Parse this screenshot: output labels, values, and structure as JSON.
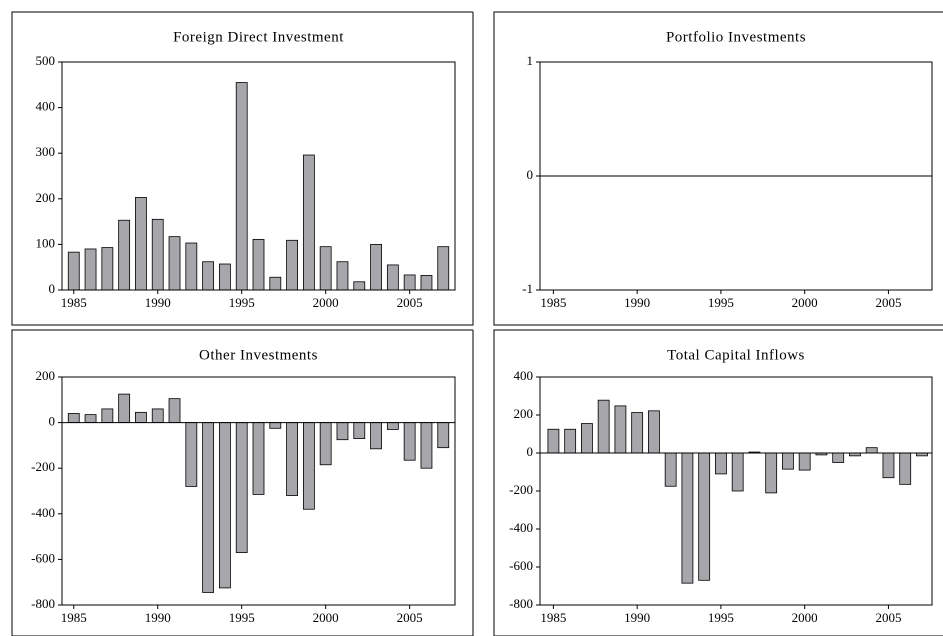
{
  "chart_data": [
    {
      "type": "bar",
      "title": "Foreign Direct Investment",
      "color": "#a6a6ab",
      "x": [
        1985,
        1986,
        1987,
        1988,
        1989,
        1990,
        1991,
        1992,
        1993,
        1994,
        1995,
        1996,
        1997,
        1998,
        1999,
        2000,
        2001,
        2002,
        2003,
        2004,
        2005,
        2006,
        2007
      ],
      "values": [
        83,
        90,
        93,
        153,
        203,
        155,
        117,
        103,
        62,
        57,
        455,
        111,
        28,
        109,
        296,
        95,
        62,
        18,
        100,
        55,
        33,
        32,
        95
      ],
      "xlim": [
        1984.3,
        2007.7
      ],
      "xticks": [
        1985,
        1990,
        1995,
        2000,
        2005
      ],
      "ylim": [
        0,
        500
      ],
      "yticks": [
        0,
        100,
        200,
        300,
        400,
        500
      ]
    },
    {
      "type": "bar",
      "title": "Portfolio Investments",
      "color": "#a6a6ab",
      "x": [
        1985,
        1986,
        1987,
        1988,
        1989,
        1990,
        1991,
        1992,
        1993,
        1994,
        1995,
        1996,
        1997,
        1998,
        1999,
        2000,
        2001,
        2002,
        2003,
        2004,
        2005,
        2006,
        2007
      ],
      "values": [
        0,
        0,
        0,
        0,
        0,
        0,
        0,
        0,
        0,
        0,
        0,
        0,
        0,
        0,
        0,
        0,
        0,
        0,
        0,
        0,
        0,
        0,
        0
      ],
      "xlim": [
        1984.2,
        2007.6
      ],
      "xticks": [
        1985,
        1990,
        1995,
        2000,
        2005
      ],
      "ylim": [
        -1,
        1
      ],
      "yticks": [
        -1,
        0,
        1
      ]
    },
    {
      "type": "bar",
      "title": "Other Investments",
      "color": "#a6a6ab",
      "x": [
        1985,
        1986,
        1987,
        1988,
        1989,
        1990,
        1991,
        1992,
        1993,
        1994,
        1995,
        1996,
        1997,
        1998,
        1999,
        2000,
        2001,
        2002,
        2003,
        2004,
        2005,
        2006,
        2007
      ],
      "values": [
        40,
        35,
        60,
        125,
        45,
        60,
        105,
        -280,
        -745,
        -725,
        -570,
        -315,
        -25,
        -320,
        -380,
        -185,
        -75,
        -70,
        -115,
        -30,
        -165,
        -200,
        -110
      ],
      "xlim": [
        1984.3,
        2007.7
      ],
      "xticks": [
        1985,
        1990,
        1995,
        2000,
        2005
      ],
      "ylim": [
        -800,
        200
      ],
      "yticks": [
        -800,
        -600,
        -400,
        -200,
        0,
        200
      ]
    },
    {
      "type": "bar",
      "title": "Total Capital Inflows",
      "color": "#a6a6ab",
      "x": [
        1985,
        1986,
        1987,
        1988,
        1989,
        1990,
        1991,
        1992,
        1993,
        1994,
        1995,
        1996,
        1997,
        1998,
        1999,
        2000,
        2001,
        2002,
        2003,
        2004,
        2005,
        2006,
        2007
      ],
      "values": [
        125,
        125,
        155,
        278,
        248,
        213,
        222,
        -175,
        -685,
        -670,
        -110,
        -200,
        5,
        -210,
        -85,
        -90,
        -10,
        -50,
        -15,
        28,
        -130,
        -165,
        -15
      ],
      "xlim": [
        1984.2,
        2007.6
      ],
      "xticks": [
        1985,
        1990,
        1995,
        2000,
        2005
      ],
      "ylim": [
        -800,
        400
      ],
      "yticks": [
        -800,
        -600,
        -400,
        -200,
        0,
        200,
        400
      ]
    }
  ]
}
